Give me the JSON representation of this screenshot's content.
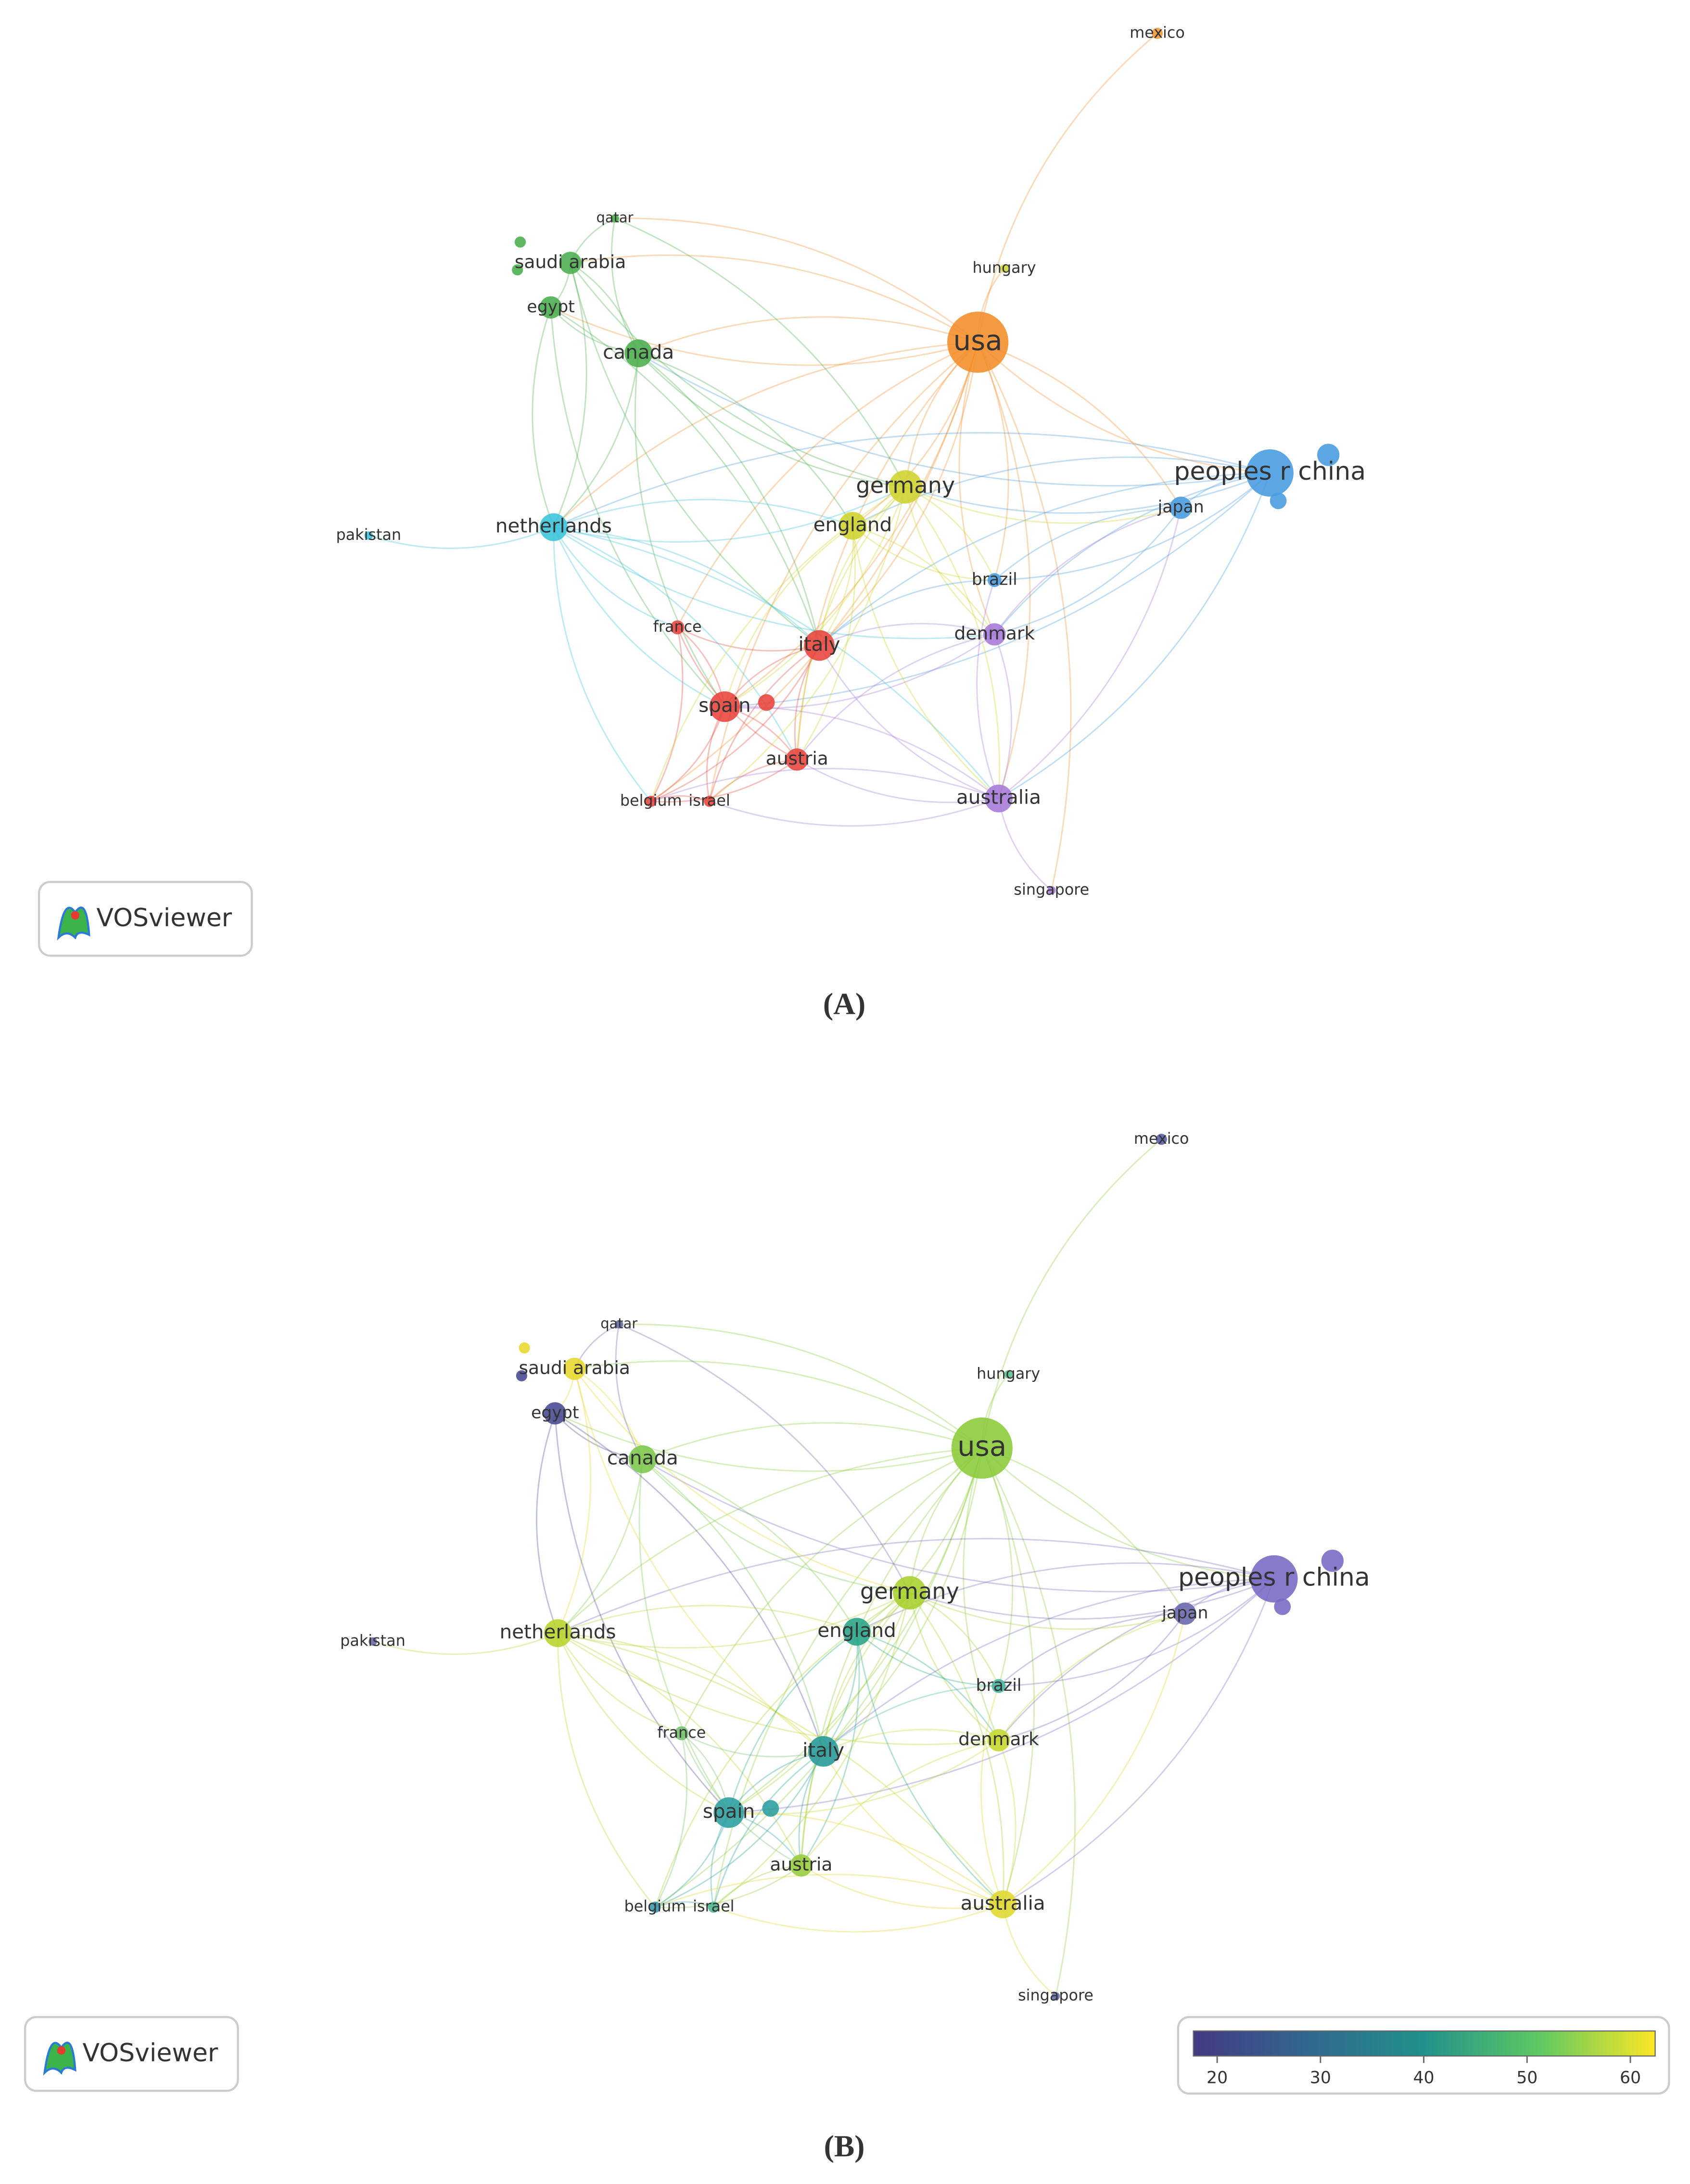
{
  "nodes": [
    {
      "label": "mexico"
    },
    {
      "label": "qatar"
    },
    {
      "label": "saudi arabia"
    },
    {
      "label": "egypt"
    },
    {
      "label": "canada"
    },
    {
      "label": "hungary"
    },
    {
      "label": "usa"
    },
    {
      "label": "peoples r china"
    },
    {
      "label": "japan"
    },
    {
      "label": "germany"
    },
    {
      "label": "england"
    },
    {
      "label": "netherlands"
    },
    {
      "label": "pakistan"
    },
    {
      "label": "brazil"
    },
    {
      "label": "france"
    },
    {
      "label": "italy"
    },
    {
      "label": "denmark"
    },
    {
      "label": "spain"
    },
    {
      "label": "austria"
    },
    {
      "label": "belgium"
    },
    {
      "label": "israel"
    },
    {
      "label": "australia"
    },
    {
      "label": "singapore"
    }
  ],
  "logo_text": "VOSviewer",
  "panels": [
    {
      "panel_label": "(A)",
      "node_colors": [
        "#f39a3c",
        "#4caf50",
        "#4caf50",
        "#4caf50",
        "#4caf50",
        "#d4d63a",
        "#f3902e",
        "#4a9de0",
        "#4a9de0",
        "#cfd432",
        "#cfd432",
        "#3cc4dc",
        "#3cc4dc",
        "#4a9de0",
        "#e8473f",
        "#e8473f",
        "#a77bd8",
        "#e8473f",
        "#e8473f",
        "#e8473f",
        "#e8473f",
        "#a77bd8",
        "#a77bd8"
      ]
    },
    {
      "panel_label": "(B)",
      "node_colors": [
        "#5b5ea6",
        "#6a6aa8",
        "#e8d830",
        "#4b4d96",
        "#7ec850",
        "#5ac18e",
        "#8ccc3c",
        "#7a6cc4",
        "#6a6ab0",
        "#a8d030",
        "#2aa58a",
        "#b8d430",
        "#6a6aa8",
        "#48b4a0",
        "#78c070",
        "#2a9a9a",
        "#c8d830",
        "#30a0a0",
        "#98cc40",
        "#3a9ab0",
        "#50b890",
        "#e0d830",
        "#6470b0"
      ],
      "colorbar": {
        "range": [
          17.7,
          62.4
        ],
        "ticks": [
          20,
          30,
          40,
          50,
          60
        ]
      }
    }
  ]
}
